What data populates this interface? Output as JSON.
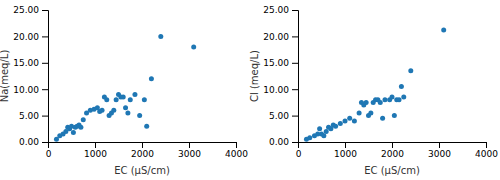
{
  "chart_data": [
    {
      "type": "scatter",
      "xlabel": "EC (μS/cm)",
      "ylabel": "Na(meq/L)",
      "xlim": [
        0,
        4000
      ],
      "ylim": [
        0,
        25
      ],
      "xticks": [
        0,
        1000,
        2000,
        3000,
        4000
      ],
      "yticks": [
        {
          "value": 0,
          "label": "0.00"
        },
        {
          "value": 5,
          "label": "5.00"
        },
        {
          "value": 10,
          "label": "10.00"
        },
        {
          "value": 15,
          "label": "15.00"
        },
        {
          "value": 20,
          "label": "20.00"
        },
        {
          "value": 25,
          "label": "25.00"
        }
      ],
      "grid": false,
      "x": [
        180,
        250,
        320,
        380,
        420,
        460,
        500,
        540,
        580,
        620,
        660,
        700,
        750,
        820,
        900,
        980,
        1050,
        1100,
        1150,
        1200,
        1250,
        1300,
        1350,
        1400,
        1450,
        1500,
        1550,
        1600,
        1650,
        1700,
        1750,
        1850,
        1950,
        2050,
        2100,
        2200,
        2400,
        3100
      ],
      "values": [
        0.5,
        1.2,
        1.5,
        2.0,
        2.8,
        2.5,
        3.0,
        1.8,
        2.8,
        3.0,
        3.2,
        2.8,
        4.2,
        5.5,
        6.0,
        6.2,
        6.5,
        5.8,
        6.0,
        8.5,
        8.0,
        5.0,
        5.5,
        6.0,
        8.0,
        9.0,
        8.5,
        8.5,
        6.5,
        5.5,
        8.0,
        9.0,
        5.0,
        8.0,
        3.0,
        12.0,
        20.0,
        18.0
      ]
    },
    {
      "type": "scatter",
      "xlabel": "EC (μS/cm)",
      "ylabel": "Cl (meq/L)",
      "xlim": [
        0,
        4000
      ],
      "ylim": [
        0,
        25
      ],
      "xticks": [
        0,
        1000,
        2000,
        3000,
        4000
      ],
      "yticks": [
        {
          "value": 0,
          "label": "0.00"
        },
        {
          "value": 5,
          "label": "5.00"
        },
        {
          "value": 10,
          "label": "10.00"
        },
        {
          "value": 15,
          "label": "15.00"
        },
        {
          "value": 20,
          "label": "20.00"
        },
        {
          "value": 25,
          "label": "25.00"
        }
      ],
      "grid": false,
      "x": [
        180,
        250,
        350,
        420,
        460,
        500,
        550,
        600,
        650,
        700,
        750,
        800,
        900,
        1000,
        1100,
        1200,
        1300,
        1350,
        1400,
        1450,
        1500,
        1550,
        1600,
        1650,
        1700,
        1750,
        1800,
        1850,
        1950,
        2000,
        2050,
        2100,
        2150,
        2200,
        2250,
        2400,
        3100
      ],
      "values": [
        0.5,
        0.8,
        1.2,
        1.5,
        2.5,
        1.5,
        1.2,
        2.0,
        2.8,
        2.5,
        3.2,
        3.0,
        3.5,
        4.0,
        4.5,
        4.0,
        5.5,
        7.5,
        7.0,
        7.5,
        5.0,
        5.5,
        7.5,
        8.0,
        8.0,
        7.5,
        4.5,
        8.0,
        8.0,
        8.5,
        5.0,
        8.0,
        8.0,
        10.5,
        8.5,
        13.5,
        21.2
      ]
    }
  ]
}
